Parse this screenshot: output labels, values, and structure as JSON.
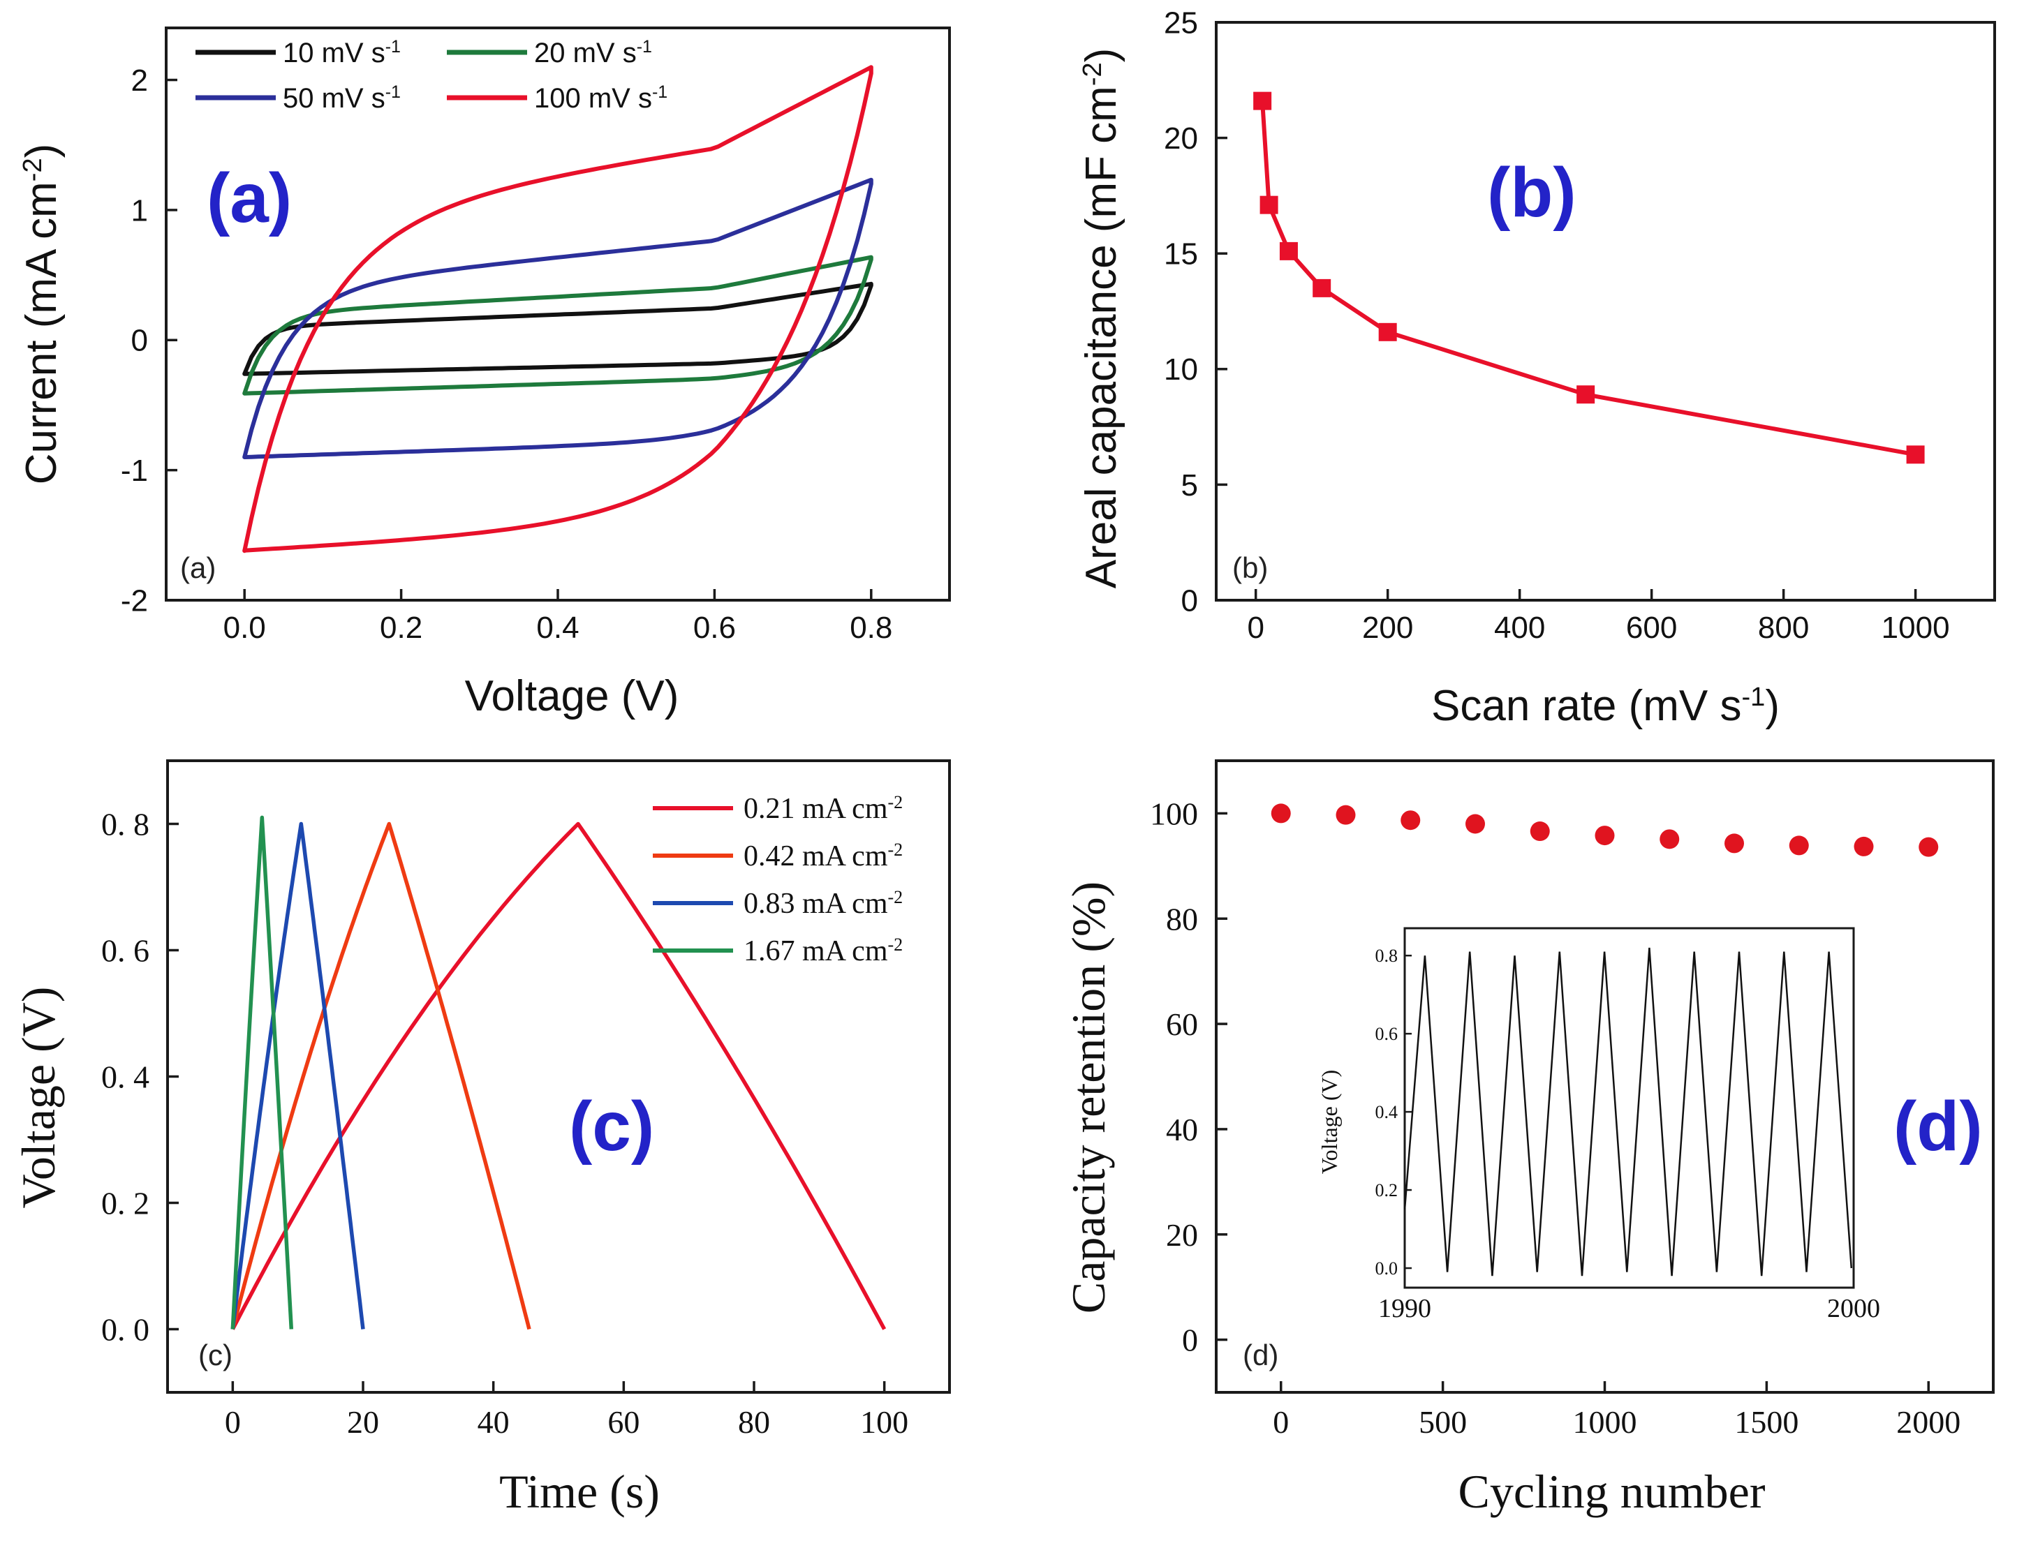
{
  "figure_id": "electrochemical-figure",
  "colors": {
    "black": "#111111",
    "green": "#1e7a3c",
    "blue": "#2b2f9a",
    "red": "#e8102a",
    "orange": "#ef3b12",
    "mblue": "#1d49b0",
    "mgreen": "#229150",
    "panel_label": "#2323c8",
    "d_red": "#e0141f"
  },
  "chart_data": [
    {
      "id": "a",
      "type": "line",
      "panel_label": "(a)",
      "corner_label": "(a)",
      "xlabel": "Voltage (V)",
      "ylabel": "Current (mA cm",
      "ylabel_sup": "-2",
      "ylabel_close": ")",
      "xlim": [
        -0.1,
        0.9
      ],
      "ylim": [
        -2.0,
        2.4
      ],
      "xticks": [
        0.0,
        0.2,
        0.4,
        0.6,
        0.8
      ],
      "xticklabels": [
        "0.0",
        "0.2",
        "0.4",
        "0.6",
        "0.8"
      ],
      "yticks": [
        -2,
        -1,
        0,
        1,
        2
      ],
      "yticklabels": [
        "-2",
        "-1",
        "0",
        "1",
        "2"
      ],
      "legend_position": "top-left",
      "series": [
        {
          "name": "10 mV s",
          "sup": "-1",
          "color_key": "black",
          "cv": {
            "top0": 0.1,
            "top1": 0.28,
            "topEnd": 0.42,
            "bot0": -0.26,
            "bot1": -0.18,
            "botEnd": -0.08,
            "sw": 0.02
          }
        },
        {
          "name": "20 mV s",
          "sup": "-1",
          "color_key": "green",
          "cv": {
            "top0": 0.2,
            "top1": 0.45,
            "topEnd": 0.62,
            "bot0": -0.41,
            "bot1": -0.3,
            "botEnd": -0.2,
            "sw": 0.03
          }
        },
        {
          "name": "50 mV s",
          "sup": "-1",
          "color_key": "blue",
          "cv": {
            "top0": 0.38,
            "top1": 0.86,
            "topEnd": 1.2,
            "bot0": -0.9,
            "bot1": -0.78,
            "botEnd": -0.55,
            "sw": 0.05
          }
        },
        {
          "name": "100 mV s",
          "sup": "-1",
          "color_key": "red",
          "cv": {
            "top0": 0.9,
            "top1": 1.62,
            "topEnd": 2.05,
            "bot0": -1.62,
            "bot1": -1.42,
            "botEnd": -1.0,
            "sw": 0.085
          }
        }
      ]
    },
    {
      "id": "b",
      "type": "line",
      "panel_label": "(b)",
      "corner_label": "(b)",
      "xlabel": "Scan rate (mV s",
      "xlabel_sup": "-1",
      "xlabel_close": ")",
      "ylabel": "Areal capacitance (mF cm",
      "ylabel_sup": "-2",
      "ylabel_close": ")",
      "xlim": [
        -60,
        1120
      ],
      "ylim": [
        0,
        25
      ],
      "xticks": [
        0,
        200,
        400,
        600,
        800,
        1000
      ],
      "xticklabels": [
        "0",
        "200",
        "400",
        "600",
        "800",
        "1000"
      ],
      "yticks": [
        0,
        5,
        10,
        15,
        20,
        25
      ],
      "yticklabels": [
        "0",
        "5",
        "10",
        "15",
        "20",
        "25"
      ],
      "series": [
        {
          "name": "Areal capacitance",
          "color_key": "red",
          "x": [
            10,
            20,
            50,
            100,
            200,
            500,
            1000
          ],
          "y": [
            21.6,
            17.1,
            15.1,
            13.5,
            11.6,
            8.9,
            6.3
          ]
        }
      ]
    },
    {
      "id": "c",
      "type": "line",
      "panel_label": "(c)",
      "corner_label": "(c)",
      "xlabel": "Time (s)",
      "ylabel": "Voltage (V)",
      "xlim": [
        -10,
        110
      ],
      "ylim": [
        -0.1,
        0.9
      ],
      "xticks": [
        0,
        20,
        40,
        60,
        80,
        100
      ],
      "xticklabels": [
        "0",
        "20",
        "40",
        "60",
        "80",
        "100"
      ],
      "yticks": [
        0.0,
        0.2,
        0.4,
        0.6,
        0.8
      ],
      "yticklabels": [
        "0. 0",
        "0. 2",
        "0. 4",
        "0. 6",
        "0. 8"
      ],
      "legend_position": "top-right",
      "series": [
        {
          "name": "0.21 mA cm",
          "sup": "-2",
          "color_key": "red",
          "peak_t": 53,
          "end_t": 100,
          "vmax": 0.8,
          "curv": 0.16
        },
        {
          "name": "0.42 mA cm",
          "sup": "-2",
          "color_key": "orange",
          "peak_t": 24,
          "end_t": 45.5,
          "vmax": 0.8,
          "curv": 0.1
        },
        {
          "name": "0.83 mA cm",
          "sup": "-2",
          "color_key": "mblue",
          "peak_t": 10.5,
          "end_t": 20,
          "vmax": 0.8,
          "curv": 0.06
        },
        {
          "name": "1.67 mA cm",
          "sup": "-2",
          "color_key": "mgreen",
          "peak_t": 4.5,
          "end_t": 9,
          "vmax": 0.81,
          "curv": 0.04
        }
      ]
    },
    {
      "id": "d",
      "type": "scatter",
      "panel_label": "(d)",
      "corner_label": "(d)",
      "xlabel": "Cycling number",
      "ylabel": "Capacity retention (%)",
      "xlim": [
        -200,
        2200
      ],
      "ylim": [
        -10,
        110
      ],
      "xticks": [
        0,
        500,
        1000,
        1500,
        2000
      ],
      "xticklabels": [
        "0",
        "500",
        "1000",
        "1500",
        "2000"
      ],
      "yticks": [
        0,
        20,
        40,
        60,
        80,
        100
      ],
      "yticklabels": [
        "0",
        "20",
        "40",
        "60",
        "80",
        "100"
      ],
      "series": [
        {
          "name": "Capacity retention",
          "color_key": "d_red",
          "x": [
            0,
            200,
            400,
            600,
            800,
            1000,
            1200,
            1400,
            1600,
            1800,
            2000
          ],
          "y": [
            100.0,
            99.7,
            98.7,
            98.0,
            96.6,
            95.8,
            95.1,
            94.3,
            93.9,
            93.7,
            93.6
          ]
        }
      ],
      "inset": {
        "ylabel": "Voltage (V)",
        "xlim": [
          1990,
          2000
        ],
        "ylim": [
          -0.05,
          0.87
        ],
        "xtick_labels_shown": [
          "1990",
          "2000"
        ],
        "yticks": [
          0.0,
          0.2,
          0.4,
          0.6,
          0.8
        ],
        "yticklabels": [
          "0.0",
          "0.2",
          "0.4",
          "0.6",
          "0.8"
        ],
        "cycles": 10,
        "peak_x": [
          1990.45,
          1991.45,
          1992.45,
          1993.45,
          1994.45,
          1995.45,
          1996.45,
          1997.45,
          1998.45,
          1999.45
        ],
        "peak_v": [
          0.8,
          0.81,
          0.8,
          0.81,
          0.81,
          0.82,
          0.81,
          0.81,
          0.81,
          0.81
        ],
        "trough_x": [
          1990.0,
          1990.95,
          1991.95,
          1992.95,
          1993.95,
          1994.95,
          1995.95,
          1996.95,
          1997.95,
          1998.95,
          1999.95
        ],
        "trough_v": [
          0.15,
          -0.01,
          -0.02,
          -0.01,
          -0.02,
          -0.01,
          -0.02,
          -0.01,
          -0.02,
          -0.01,
          0.0
        ]
      }
    }
  ]
}
